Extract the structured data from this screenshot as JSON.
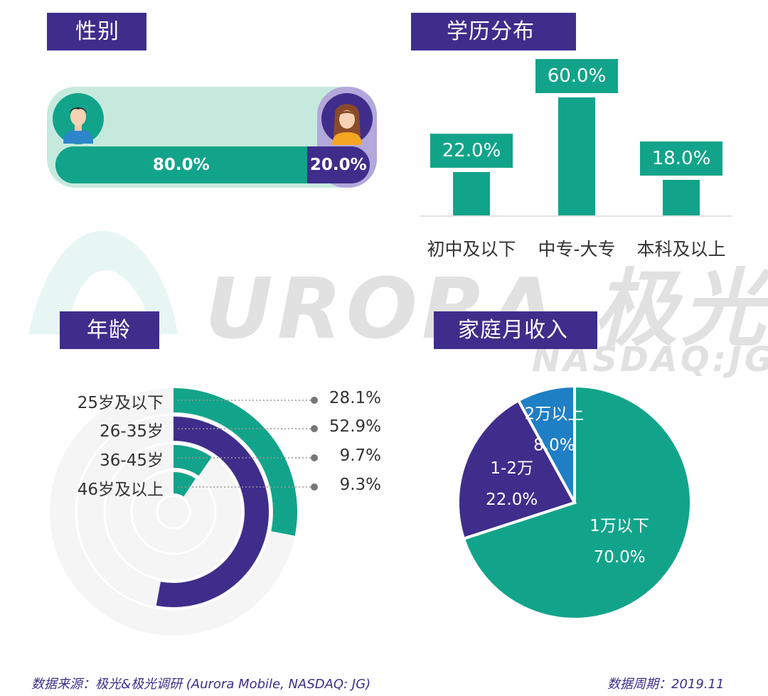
{
  "watermark": {
    "brand": "URORA 极光",
    "ticker": "NASDAQ:JG"
  },
  "sections": {
    "gender": "性别",
    "education": "学历分布",
    "age": "年龄",
    "income": "家庭月收入"
  },
  "colors": {
    "teal": "#12a48a",
    "purple": "#3f2d8b",
    "blue": "#1f7fc4",
    "light_teal": "#c5eadd",
    "light_purple": "#b2a8db"
  },
  "chart_data": [
    {
      "type": "bar",
      "name": "gender",
      "categories": [
        "male-icon",
        "female-icon"
      ],
      "values": [
        80.0,
        20.0
      ],
      "labels": [
        "80.0%",
        "20.0%"
      ]
    },
    {
      "type": "bar",
      "name": "education",
      "categories": [
        "初中及以下",
        "中专-大专",
        "本科及以上"
      ],
      "values": [
        22.0,
        60.0,
        18.0
      ],
      "labels": [
        "22.0%",
        "60.0%",
        "18.0%"
      ]
    },
    {
      "type": "radial-bar",
      "name": "age",
      "categories": [
        "25岁及以下",
        "26-35岁",
        "36-45岁",
        "46岁及以上"
      ],
      "values": [
        28.1,
        52.9,
        9.7,
        9.3
      ],
      "labels": [
        "28.1%",
        "52.9%",
        "9.7%",
        "9.3%"
      ]
    },
    {
      "type": "pie",
      "name": "income",
      "categories": [
        "1万以下",
        "1-2万",
        "2万以上"
      ],
      "values": [
        70.0,
        22.0,
        8.0
      ],
      "labels": [
        "70.0%",
        "22.0%",
        "8.0%"
      ]
    }
  ],
  "footer": {
    "source": "数据来源：极光&极光调研 (Aurora Mobile, NASDAQ: JG)",
    "period": "数据周期：2019.11"
  }
}
